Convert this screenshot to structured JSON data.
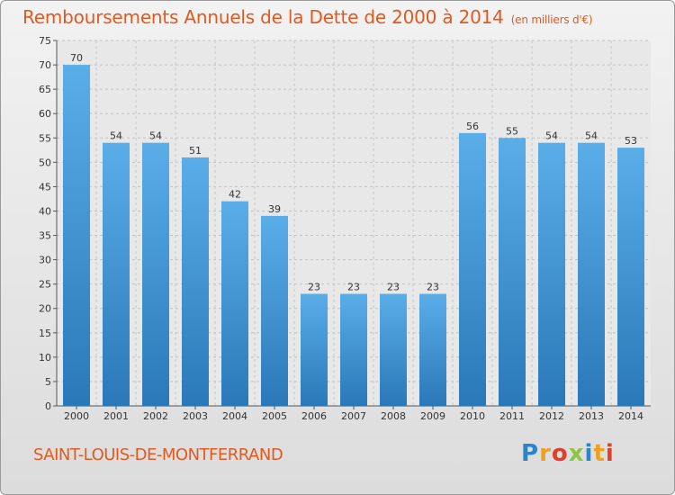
{
  "chart_data": {
    "type": "bar",
    "title": "Remboursements Annuels de la Dette de 2000 à 2014",
    "subtitle": "(en milliers d'€)",
    "categories": [
      "2000",
      "2001",
      "2002",
      "2003",
      "2004",
      "2005",
      "2006",
      "2007",
      "2008",
      "2009",
      "2010",
      "2011",
      "2012",
      "2013",
      "2014"
    ],
    "values": [
      70,
      54,
      54,
      51,
      42,
      39,
      23,
      23,
      23,
      23,
      56,
      55,
      54,
      54,
      53
    ],
    "ylim": [
      0,
      75
    ],
    "yticks": [
      0,
      5,
      10,
      15,
      20,
      25,
      30,
      35,
      40,
      45,
      50,
      55,
      60,
      65,
      70,
      75
    ],
    "xlabel": "",
    "ylabel": "",
    "grid": true
  },
  "commune": "SAINT-LOUIS-DE-MONTFERRAND",
  "logo": {
    "letters": [
      "P",
      "r",
      "o",
      "x",
      "i",
      "t",
      "i"
    ],
    "colors": [
      "#2a86c8",
      "#f0a020",
      "#e0402a",
      "#8cc63e",
      "#2a86c8",
      "#f0a020",
      "#e0402a"
    ]
  },
  "colors": {
    "title": "#e05a20",
    "bar_top": "#5aaee8",
    "bar_bottom": "#2a78b8"
  }
}
